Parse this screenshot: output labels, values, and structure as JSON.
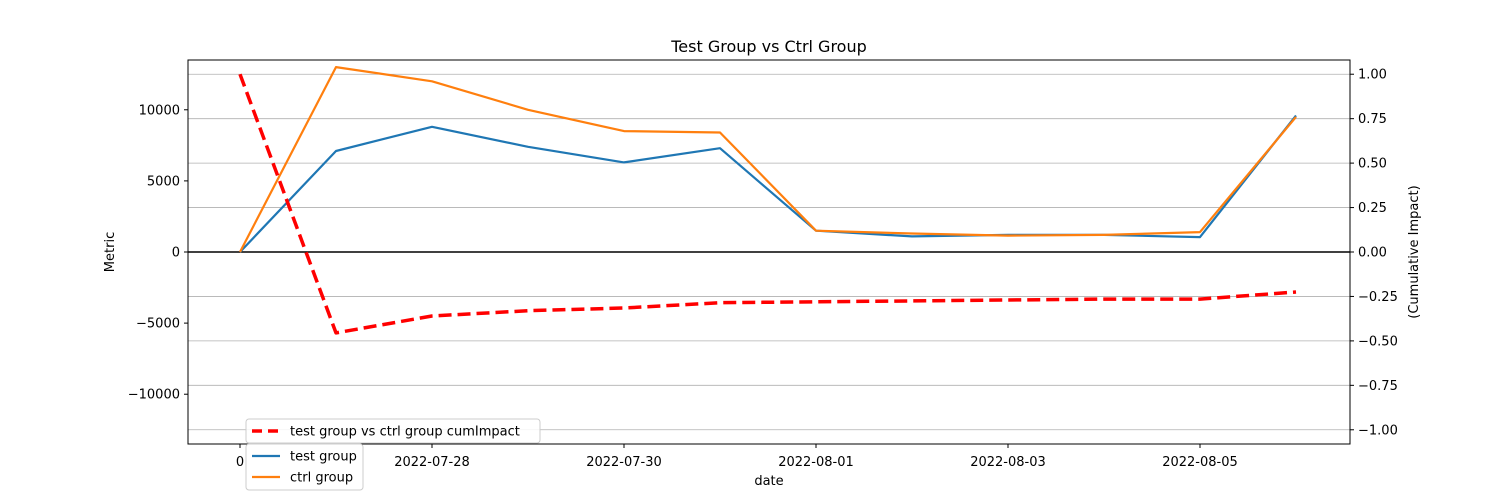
{
  "chart_data": {
    "type": "line",
    "title": "Test Group vs Ctrl Group",
    "xlabel": "date",
    "ylabel": "Metric",
    "y2label": "(Cumulative Impact)",
    "x": [
      "2022-07-26",
      "2022-07-27",
      "2022-07-28",
      "2022-07-29",
      "2022-07-30",
      "2022-07-31",
      "2022-08-01",
      "2022-08-02",
      "2022-08-03",
      "2022-08-04",
      "2022-08-05",
      "2022-08-06"
    ],
    "xticks": [
      "2022-07-26",
      "2022-07-28",
      "2022-07-30",
      "2022-08-01",
      "2022-08-03",
      "2022-08-05"
    ],
    "xtick_labels": [
      "0",
      "2022-07-28",
      "2022-07-30",
      "2022-08-01",
      "2022-08-03",
      "2022-08-05"
    ],
    "ylim": [
      -13500,
      13500
    ],
    "yticks": [
      -10000,
      -5000,
      0,
      5000,
      10000
    ],
    "y2lim": [
      -1.08,
      1.08
    ],
    "y2ticks": [
      -1.0,
      -0.75,
      -0.5,
      -0.25,
      0.0,
      0.25,
      0.5,
      0.75,
      1.0
    ],
    "y2tick_labels": [
      "−1.00",
      "−0.75",
      "−0.50",
      "−0.25",
      "0.00",
      "0.25",
      "0.50",
      "0.75",
      "1.00"
    ],
    "grid": "y2-major",
    "legend_position": "lower-left",
    "series": [
      {
        "name": "test group",
        "axis": "left",
        "color": "#1f77b4",
        "style": "solid",
        "values": [
          0,
          7100,
          8800,
          7400,
          6300,
          7300,
          1500,
          1100,
          1200,
          1200,
          1050,
          9600
        ]
      },
      {
        "name": "ctrl group",
        "axis": "left",
        "color": "#ff7f0e",
        "style": "solid",
        "values": [
          0,
          13000,
          12000,
          10000,
          8500,
          8400,
          1500,
          1300,
          1150,
          1200,
          1400,
          9500
        ]
      },
      {
        "name": "test group vs ctrl group cumImpact",
        "axis": "right",
        "color": "#ff0000",
        "style": "dashed",
        "values": [
          1.0,
          -0.455,
          -0.36,
          -0.33,
          -0.315,
          -0.285,
          -0.28,
          -0.275,
          -0.27,
          -0.265,
          -0.265,
          -0.225
        ]
      }
    ],
    "legend_order": [
      2,
      0,
      1
    ]
  }
}
